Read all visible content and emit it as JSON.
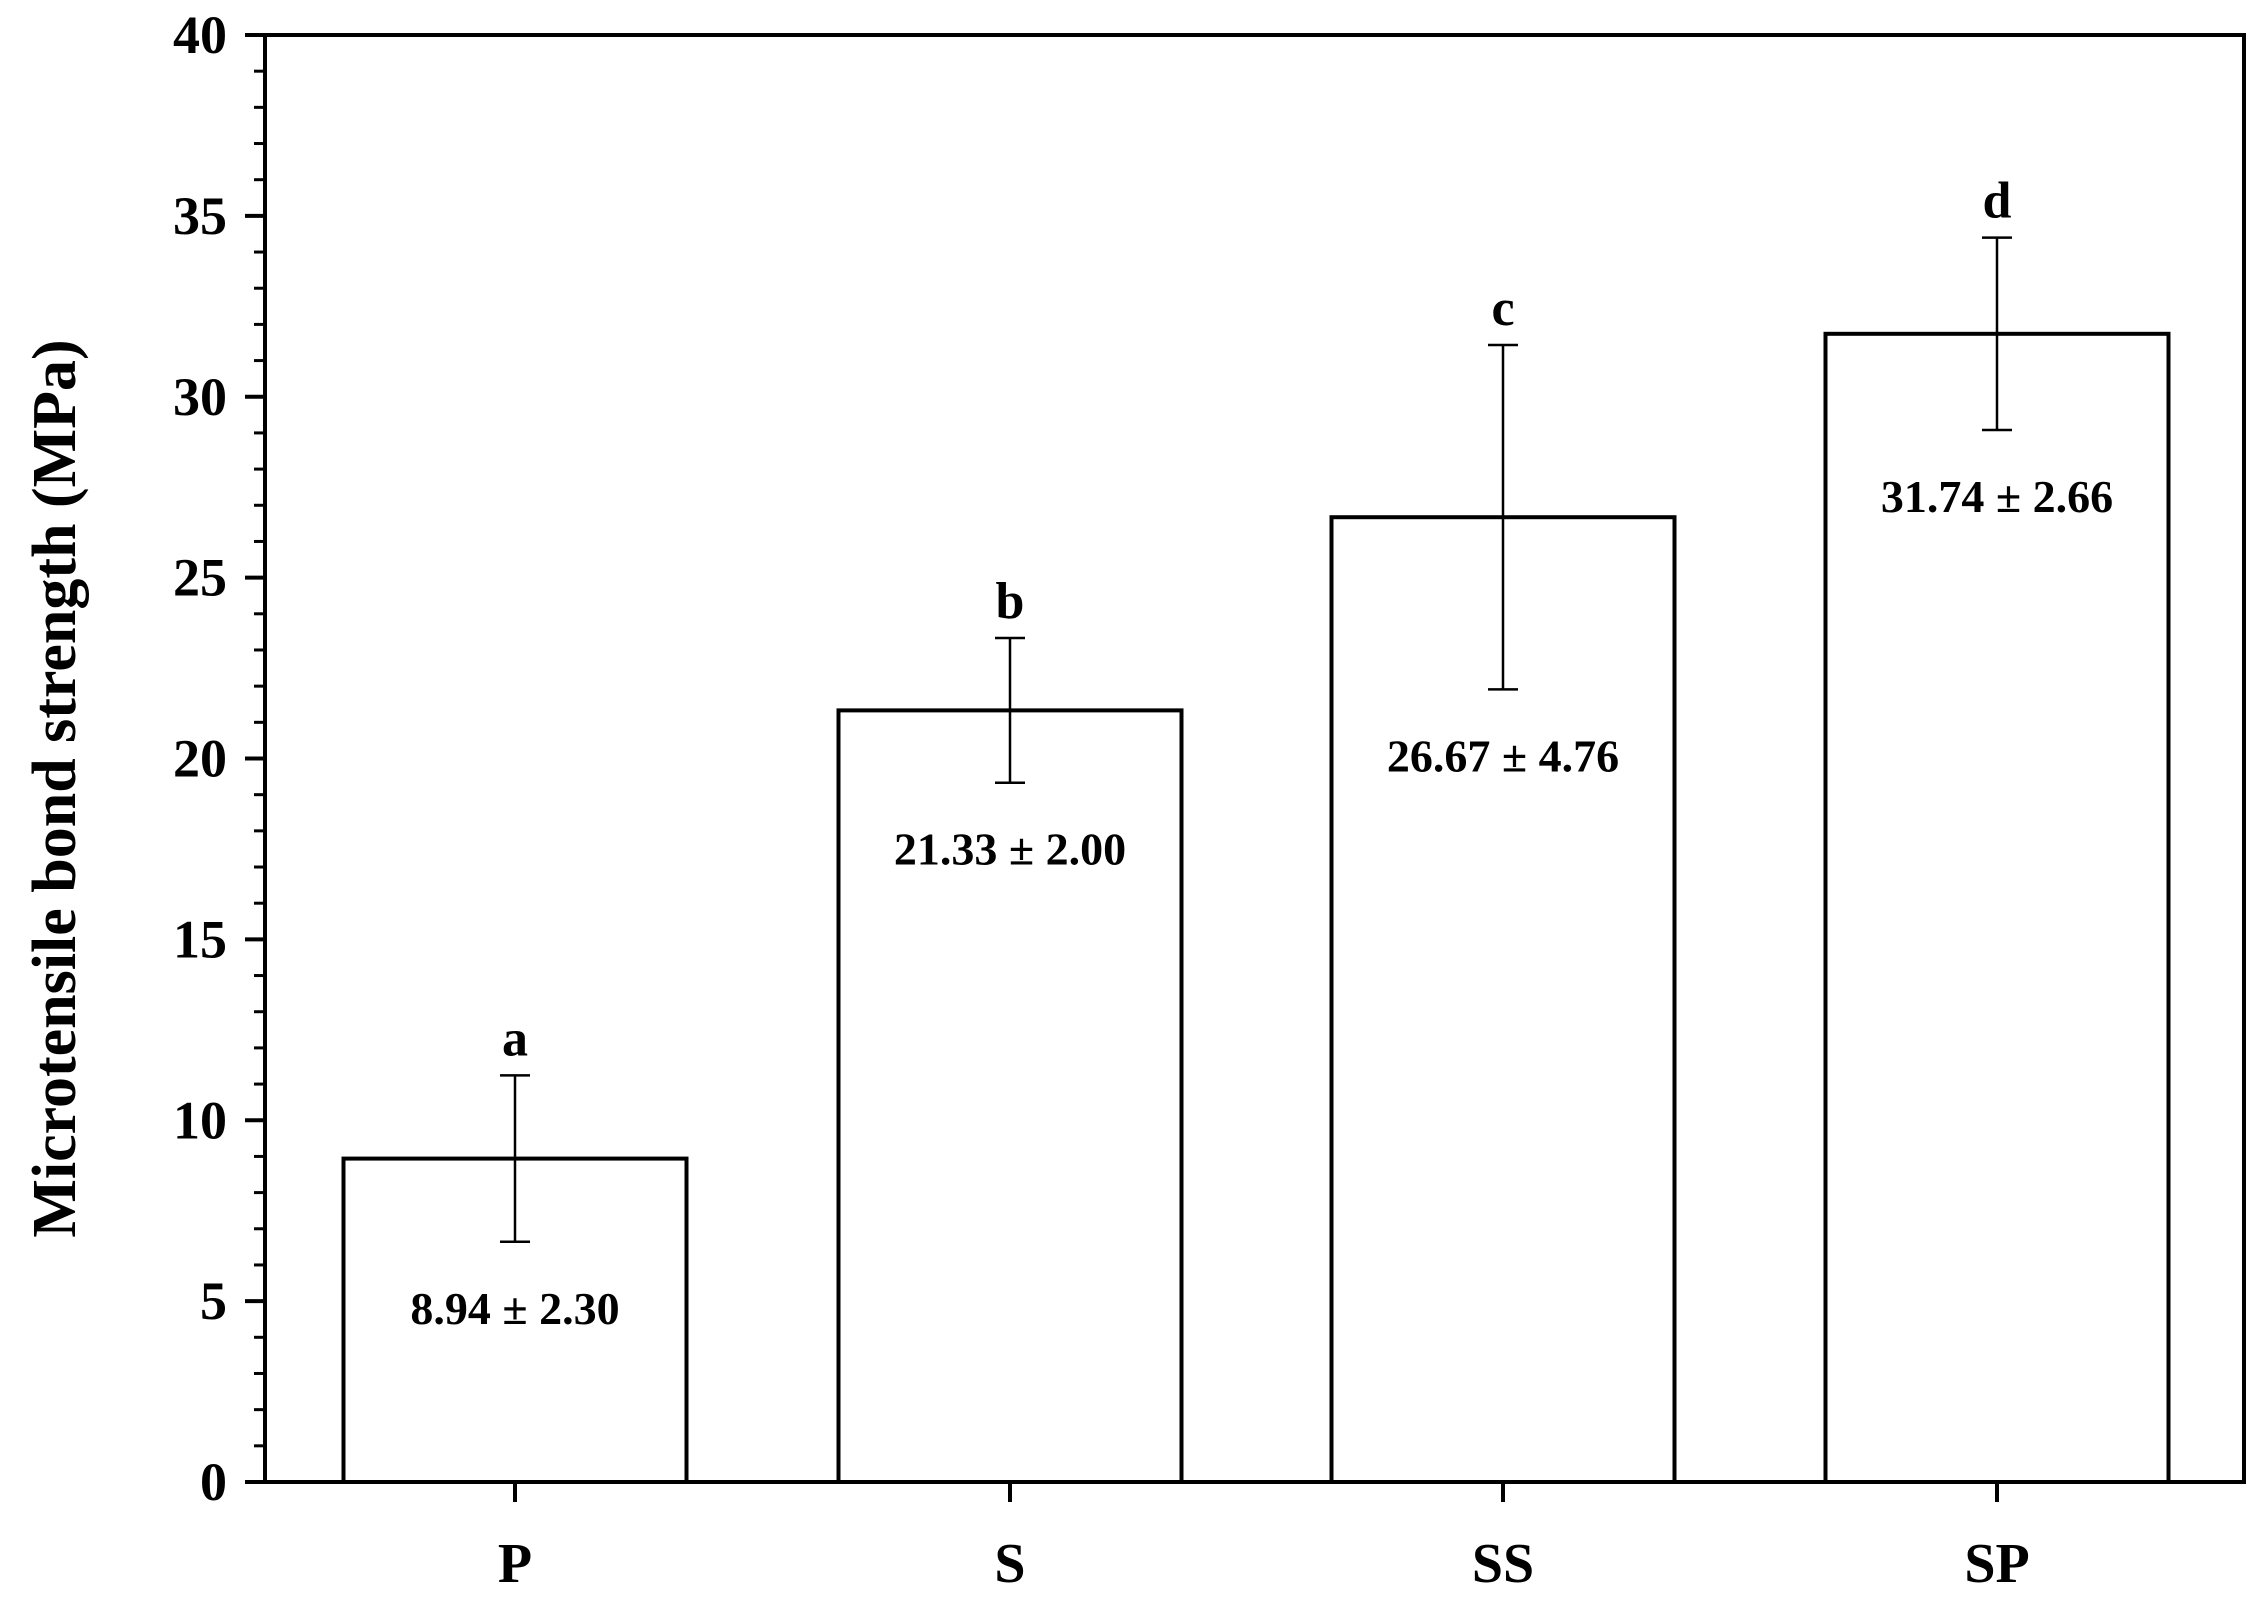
{
  "chart_data": {
    "type": "bar",
    "title": "",
    "xlabel": "",
    "ylabel": "Microtensile bond strength (MPa)",
    "categories": [
      "P",
      "S",
      "SS",
      "SP"
    ],
    "values": [
      8.94,
      21.33,
      26.67,
      31.74
    ],
    "errors": [
      2.3,
      2.0,
      4.76,
      2.66
    ],
    "value_labels": [
      "8.94 ± 2.30",
      "21.33 ± 2.00",
      "26.67 ± 4.76",
      "31.74 ± 2.66"
    ],
    "group_letters": [
      "a",
      "b",
      "c",
      "d"
    ],
    "ylim": [
      0,
      40
    ],
    "yticks": [
      0,
      5,
      10,
      15,
      20,
      25,
      30,
      35,
      40
    ],
    "ytick_labels": [
      "0",
      "5",
      "10",
      "15",
      "20",
      "25",
      "30",
      "35",
      "40"
    ],
    "grid": false,
    "legend": "none",
    "bar_fill": "#ffffff",
    "bar_stroke": "#000000"
  }
}
